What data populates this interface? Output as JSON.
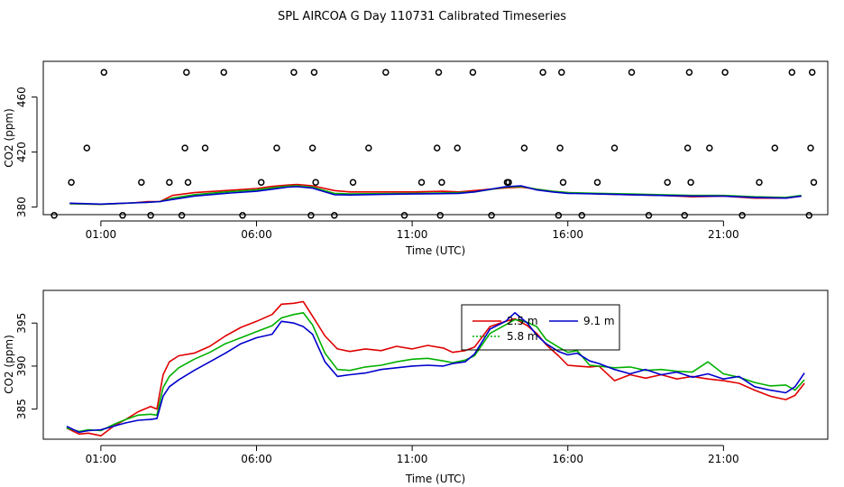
{
  "figure": {
    "title": "SPL AIRCOA G  Day 110731  Calibrated Timeseries"
  },
  "chart_data": [
    {
      "type": "line",
      "xlabel": "Time (UTC)",
      "ylabel": "CO2 (ppm)",
      "xlim": [
        -0.85,
        24.35
      ],
      "ylim": [
        374.5,
        486
      ],
      "x_ticks": [
        1,
        6,
        11,
        16,
        21
      ],
      "x_tick_labels": [
        "01:00",
        "06:00",
        "11:00",
        "16:00",
        "21:00"
      ],
      "y_ticks": [
        380,
        420,
        460
      ],
      "y_tick_labels": [
        "380",
        "420",
        "460"
      ],
      "series": [
        {
          "name": "2.5 m",
          "color": "#e00000",
          "x": [
            0,
            1,
            2,
            2.5,
            2.9,
            3.3,
            4,
            5,
            6,
            6.5,
            7,
            7.3,
            7.8,
            8.5,
            9,
            10,
            11,
            12,
            12.5,
            13,
            14,
            14.5,
            15,
            15.5,
            16,
            17,
            18,
            19,
            20,
            21,
            22,
            23,
            23.5
          ],
          "y": [
            382.5,
            382,
            383,
            384,
            384,
            388.5,
            390.5,
            392,
            393.5,
            395,
            396,
            396.5,
            395.5,
            392,
            391,
            391,
            391,
            391.5,
            391,
            392,
            394,
            394.5,
            393,
            391.5,
            390.5,
            389.5,
            389,
            388.5,
            387.5,
            388,
            386.5,
            386.5,
            388
          ]
        },
        {
          "name": "5.8 m",
          "color": "#00b000",
          "x": [
            0,
            1,
            2,
            2.5,
            2.9,
            3.3,
            4,
            5,
            6,
            6.5,
            7,
            7.3,
            7.8,
            8.5,
            9,
            10,
            11,
            12,
            12.5,
            13,
            14,
            14.5,
            15,
            15.5,
            16,
            17,
            18,
            19,
            20,
            21,
            22,
            23,
            23.5
          ],
          "y": [
            382.5,
            382,
            383,
            383.5,
            384,
            386.5,
            389,
            391,
            392.5,
            394,
            395.2,
            395.5,
            394.5,
            390,
            389.5,
            389.8,
            390,
            390.3,
            390.5,
            391,
            394.5,
            395,
            393,
            391.5,
            390.5,
            390,
            389.5,
            389,
            388.5,
            388.5,
            387.5,
            387,
            388.5
          ]
        },
        {
          "name": "9.1 m",
          "color": "#0000cc",
          "x": [
            0,
            1,
            2,
            2.5,
            2.9,
            3.3,
            4,
            5,
            6,
            6.5,
            7,
            7.3,
            7.8,
            8.5,
            9,
            10,
            11,
            12,
            12.5,
            13,
            14,
            14.5,
            15,
            15.5,
            16,
            17,
            18,
            19,
            20,
            21,
            22,
            23,
            23.5
          ],
          "y": [
            382.8,
            382.2,
            383,
            383.5,
            384,
            385.5,
            388,
            390,
            391.5,
            393,
            394.5,
            394.8,
            393.8,
            389,
            388.8,
            389.2,
            389.5,
            389.8,
            390,
            391,
            394.8,
            395.5,
            392.5,
            391,
            390,
            389.5,
            389,
            388.5,
            388,
            388,
            387,
            386.5,
            388
          ]
        }
      ],
      "calibration_points": {
        "marker": "open circle",
        "x": [
          -0.5,
          0.05,
          0.55,
          1.1,
          1.7,
          2.3,
          2.6,
          3.2,
          3.6,
          3.7,
          3.75,
          3.8,
          4.35,
          4.95,
          5.55,
          6.15,
          6.65,
          7.2,
          7.75,
          7.8,
          7.85,
          7.9,
          8.5,
          9.1,
          9.6,
          10.15,
          10.75,
          11.3,
          11.8,
          11.85,
          11.9,
          11.95,
          12.45,
          12.95,
          13.55,
          14.05,
          14.1,
          14.6,
          15.2,
          15.7,
          15.75,
          15.8,
          15.85,
          16.45,
          16.95,
          17.5,
          18.05,
          18.6,
          19.2,
          19.75,
          19.85,
          19.9,
          19.95,
          20.55,
          21.05,
          21.6,
          22.15,
          22.65,
          23.2,
          23.75,
          23.8,
          23.85,
          23.9
        ],
        "y": [
          374,
          398,
          423,
          478,
          374,
          398,
          374,
          398,
          374,
          423,
          478,
          398,
          423,
          478,
          374,
          398,
          423,
          478,
          374,
          423,
          478,
          398,
          374,
          398,
          423,
          478,
          374,
          398,
          423,
          478,
          374,
          398,
          423,
          478,
          374,
          398,
          398,
          423,
          478,
          374,
          423,
          478,
          398,
          374,
          398,
          423,
          478,
          374,
          398,
          374,
          423,
          478,
          398,
          423,
          478,
          374,
          398,
          423,
          478,
          374,
          423,
          478,
          398
        ]
      }
    },
    {
      "type": "line",
      "xlabel": "Time (UTC)",
      "ylabel": "CO2 (ppm)",
      "xlim": [
        -0.85,
        24.35
      ],
      "ylim": [
        381.5,
        398.8
      ],
      "x_ticks": [
        1,
        6,
        11,
        16,
        21
      ],
      "x_tick_labels": [
        "01:00",
        "06:00",
        "11:00",
        "16:00",
        "21:00"
      ],
      "y_ticks": [
        385,
        390,
        395
      ],
      "y_tick_labels": [
        "385",
        "390",
        "395"
      ],
      "legend": {
        "position": "upper-center",
        "entries": [
          "2.5 m",
          "5.8 m",
          "9.1 m"
        ]
      },
      "series": [
        {
          "name": "2.5 m",
          "color": "#e00000",
          "x": [
            -0.1,
            0.3,
            0.6,
            1,
            1.4,
            1.8,
            2.2,
            2.6,
            2.8,
            3.0,
            3.2,
            3.5,
            4,
            4.5,
            5,
            5.5,
            6,
            6.5,
            6.8,
            7.2,
            7.5,
            7.8,
            8.2,
            8.6,
            9,
            9.5,
            10,
            10.5,
            11,
            11.5,
            12,
            12.3,
            12.7,
            13,
            13.5,
            14,
            14.3,
            14.7,
            15,
            15.3,
            15.7,
            16,
            16.3,
            16.7,
            17,
            17.5,
            18,
            18.5,
            19,
            19.5,
            20,
            20.5,
            21,
            21.5,
            22,
            22.5,
            23,
            23.3,
            23.6
          ],
          "y": [
            382.8,
            382.1,
            382.2,
            381.9,
            383.0,
            383.8,
            384.7,
            385.3,
            385.0,
            389.0,
            390.5,
            391.2,
            391.5,
            392.3,
            393.5,
            394.5,
            395.2,
            396.0,
            397.2,
            397.3,
            397.5,
            395.8,
            393.5,
            392.0,
            391.7,
            392.0,
            391.8,
            392.3,
            392.0,
            392.4,
            392.1,
            391.6,
            391.8,
            392.2,
            394.6,
            395.2,
            395.5,
            394.7,
            393.8,
            392.5,
            391.2,
            390.1,
            390.0,
            389.9,
            390.0,
            388.3,
            389.0,
            388.6,
            389.0,
            388.5,
            388.8,
            388.5,
            388.3,
            388.0,
            387.2,
            386.5,
            386.1,
            386.6,
            388.0
          ]
        },
        {
          "name": "5.8 m",
          "color": "#00b000",
          "x": [
            -0.1,
            0.3,
            0.6,
            1,
            1.4,
            1.8,
            2.2,
            2.6,
            2.8,
            3.0,
            3.2,
            3.5,
            4,
            4.5,
            5,
            5.5,
            6,
            6.5,
            6.8,
            7.2,
            7.5,
            7.8,
            8.2,
            8.6,
            9,
            9.5,
            10,
            10.5,
            11,
            11.5,
            12,
            12.3,
            12.7,
            13,
            13.5,
            14,
            14.3,
            14.7,
            15,
            15.3,
            15.7,
            16,
            16.3,
            16.7,
            17,
            17.5,
            18,
            18.5,
            19,
            19.5,
            20,
            20.5,
            21,
            21.5,
            22,
            22.5,
            23,
            23.3,
            23.6
          ],
          "y": [
            382.8,
            382.4,
            382.6,
            382.5,
            383.2,
            383.8,
            384.3,
            384.4,
            384.3,
            387.5,
            388.8,
            389.8,
            390.8,
            391.6,
            392.6,
            393.3,
            394.0,
            394.7,
            395.6,
            396.0,
            396.2,
            394.8,
            391.5,
            389.6,
            389.5,
            389.9,
            390.1,
            390.5,
            390.8,
            390.9,
            390.6,
            390.4,
            390.7,
            391.2,
            393.8,
            394.8,
            395.4,
            395.1,
            394.6,
            393.1,
            392.2,
            391.6,
            391.8,
            390.1,
            390.0,
            389.8,
            389.9,
            389.5,
            389.6,
            389.4,
            389.3,
            390.5,
            389.1,
            388.7,
            388.1,
            387.7,
            387.8,
            387.2,
            388.4
          ]
        },
        {
          "name": "9.1 m",
          "color": "#0000cc",
          "x": [
            -0.1,
            0.3,
            0.6,
            1,
            1.4,
            1.8,
            2.2,
            2.6,
            2.8,
            3.0,
            3.2,
            3.5,
            4,
            4.5,
            5,
            5.5,
            6,
            6.5,
            6.8,
            7.2,
            7.5,
            7.8,
            8.2,
            8.6,
            9,
            9.5,
            10,
            10.5,
            11,
            11.5,
            12,
            12.3,
            12.7,
            13,
            13.5,
            14,
            14.3,
            14.7,
            15,
            15.3,
            15.7,
            16,
            16.3,
            16.7,
            17,
            17.5,
            18,
            18.5,
            19,
            19.5,
            20,
            20.5,
            21,
            21.5,
            22,
            22.5,
            23,
            23.3,
            23.6
          ],
          "y": [
            383.0,
            382.3,
            382.5,
            382.6,
            383.0,
            383.4,
            383.7,
            383.8,
            383.9,
            386.5,
            387.6,
            388.4,
            389.5,
            390.5,
            391.5,
            392.6,
            393.3,
            393.7,
            395.2,
            395.0,
            394.6,
            393.7,
            390.5,
            388.8,
            389.0,
            389.2,
            389.6,
            389.8,
            390.0,
            390.1,
            390.0,
            390.3,
            390.5,
            391.4,
            394.3,
            395.2,
            396.2,
            395.0,
            393.6,
            392.6,
            391.7,
            391.3,
            391.5,
            390.6,
            390.3,
            389.6,
            389.1,
            389.6,
            389.0,
            389.3,
            388.7,
            389.1,
            388.5,
            388.8,
            387.6,
            387.2,
            386.9,
            387.6,
            389.2
          ]
        }
      ]
    }
  ]
}
